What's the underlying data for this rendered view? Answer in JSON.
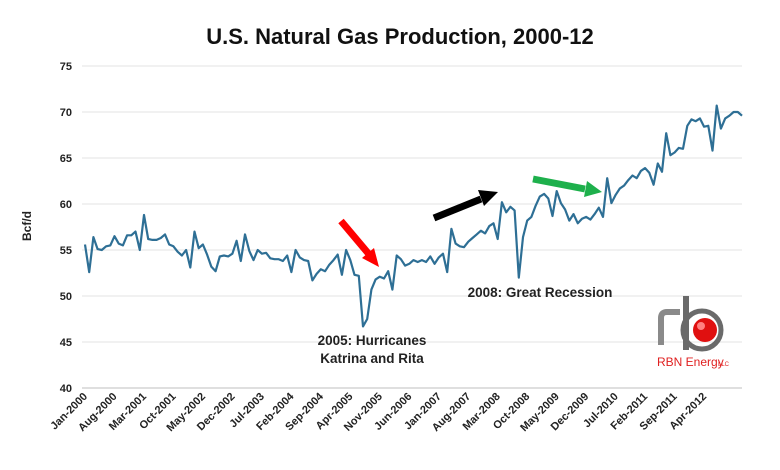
{
  "chart_data": {
    "type": "line",
    "title": "U.S. Natural Gas Production, 2000-12",
    "ylabel": "Bcf/d",
    "xlabel": "",
    "ylim": [
      40,
      75
    ],
    "yticks": [
      40,
      45,
      50,
      55,
      60,
      65,
      70,
      75
    ],
    "grid": "horizontal",
    "x_start": "Jan-2000",
    "x_labels": [
      "Jan-2000",
      "Aug-2000",
      "Mar-2001",
      "Oct-2001",
      "May-2002",
      "Dec-2002",
      "Jul-2003",
      "Feb-2004",
      "Sep-2004",
      "Apr-2005",
      "Nov-2005",
      "Jun-2006",
      "Jan-2007",
      "Aug-2007",
      "Mar-2008",
      "Oct-2008",
      "May-2009",
      "Dec-2009",
      "Jul-2010",
      "Feb-2011",
      "Sep-2011",
      "Apr-2012"
    ],
    "series": [
      {
        "color": "#2e6f95",
        "values": [
          55.6,
          52.6,
          56.4,
          55.1,
          55.0,
          55.4,
          55.5,
          56.5,
          55.7,
          55.5,
          56.6,
          56.6,
          57.0,
          55.0,
          58.8,
          56.2,
          56.1,
          56.1,
          56.3,
          56.7,
          55.6,
          55.4,
          54.8,
          54.4,
          55.0,
          53.1,
          57.0,
          55.2,
          55.6,
          54.5,
          53.2,
          52.7,
          54.3,
          54.4,
          54.3,
          54.6,
          56.0,
          53.8,
          56.7,
          54.9,
          53.9,
          55.0,
          54.6,
          54.7,
          54.1,
          54.0,
          54.0,
          53.8,
          54.4,
          52.6,
          55.0,
          54.2,
          53.9,
          53.8,
          51.7,
          52.4,
          52.9,
          52.7,
          53.4,
          53.9,
          54.5,
          52.3,
          55.0,
          53.9,
          52.3,
          52.2,
          46.7,
          47.5,
          50.7,
          51.8,
          52.1,
          51.9,
          52.7,
          50.7,
          54.4,
          54.0,
          53.3,
          53.5,
          53.9,
          53.7,
          53.9,
          53.7,
          54.3,
          53.5,
          54.2,
          54.6,
          52.6,
          57.3,
          55.7,
          55.4,
          55.3,
          55.9,
          56.3,
          56.7,
          57.1,
          56.8,
          57.6,
          57.9,
          56.2,
          60.2,
          59.1,
          59.7,
          59.3,
          52.0,
          56.4,
          58.2,
          58.6,
          59.8,
          60.8,
          61.1,
          60.6,
          58.7,
          61.4,
          60.1,
          59.4,
          58.2,
          58.9,
          57.9,
          58.4,
          58.6,
          58.3,
          58.9,
          59.6,
          58.6,
          62.8,
          60.1,
          61.0,
          61.7,
          62.0,
          62.6,
          63.1,
          62.8,
          63.6,
          63.9,
          63.4,
          62.1,
          64.4,
          63.5,
          67.7,
          65.3,
          65.6,
          66.1,
          66.0,
          68.5,
          69.2,
          69.0,
          69.3,
          68.4,
          68.5,
          65.8,
          70.7,
          68.2,
          69.3,
          69.6,
          70.0,
          70.0,
          69.6
        ]
      }
    ],
    "annotations": [
      {
        "text_lines": [
          "2005: Hurricanes",
          "Katrina and Rita"
        ],
        "arrow_color": "#ff0000"
      },
      {
        "text_lines": [
          "2008: Great Recession"
        ],
        "arrow_color": "#000000"
      },
      {
        "text_lines": [],
        "arrow_color": "#1eb04c"
      }
    ]
  },
  "logo": {
    "brand": "RBN Energy",
    "suffix": "LLC"
  }
}
